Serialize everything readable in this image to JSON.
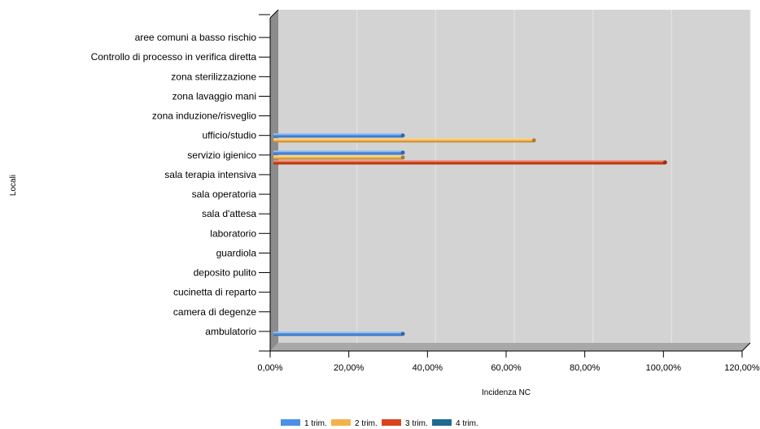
{
  "chart_data": {
    "type": "bar",
    "orientation": "horizontal",
    "style": "3d",
    "xlabel": "Incidenza NC",
    "ylabel": "Locali",
    "xlim": [
      0,
      120
    ],
    "x_ticks": [
      0,
      20,
      40,
      60,
      80,
      100,
      120
    ],
    "x_tick_labels": [
      "0,00%",
      "20,00%",
      "40,00%",
      "60,00%",
      "80,00%",
      "100,00%",
      "120,00%"
    ],
    "grid": true,
    "legend_position": "bottom",
    "categories": [
      "aree comuni a basso rischio",
      "Controllo di processo in verifica diretta",
      "zona sterilizzazione",
      "zona lavaggio mani",
      "zona induzione/risveglio",
      "ufficio/studio",
      "servizio igienico",
      "sala terapia intensiva",
      "sala operatoria",
      "sala d'attesa",
      "laboratorio",
      "guardiola",
      "deposito pulito",
      "cucinetta di reparto",
      "camera di degenze",
      "ambulatorio"
    ],
    "series": [
      {
        "name": "1 trim.",
        "color": "#4a90e8",
        "values": [
          0,
          0,
          0,
          0,
          0,
          33.33,
          33.33,
          0,
          0,
          0,
          0,
          0,
          0,
          0,
          0,
          33.33
        ]
      },
      {
        "name": "2 trim.",
        "color": "#f2b24a",
        "values": [
          0,
          0,
          0,
          0,
          0,
          66.67,
          33.33,
          0,
          0,
          0,
          0,
          0,
          0,
          0,
          0,
          0
        ]
      },
      {
        "name": "3 trim.",
        "color": "#d8441c",
        "values": [
          0,
          0,
          0,
          0,
          0,
          0,
          100,
          0,
          0,
          0,
          0,
          0,
          0,
          0,
          0,
          0
        ]
      },
      {
        "name": "4 trim.",
        "color": "#1f6b8f",
        "values": [
          0,
          0,
          0,
          0,
          0,
          0,
          0,
          0,
          0,
          0,
          0,
          0,
          0,
          0,
          0,
          0
        ]
      }
    ]
  },
  "colors": {
    "plot_background": "#d3d3d3",
    "floor": "#a8a8a8",
    "wall": "#8c8c8c",
    "gridline": "#e6e6e6"
  }
}
